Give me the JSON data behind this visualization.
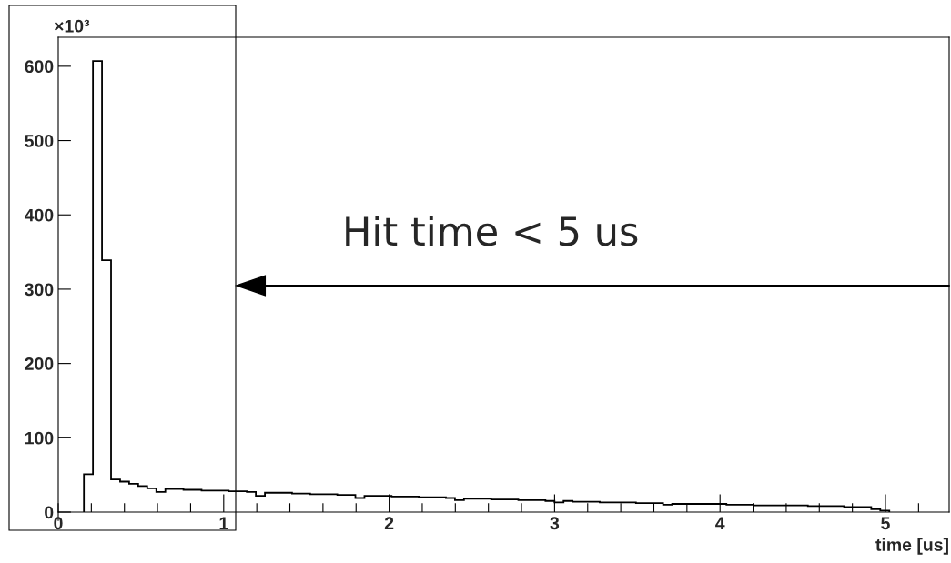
{
  "chart_data": {
    "type": "histogram",
    "xlabel": "time [us]",
    "ylabel": "×10³",
    "annotations": [
      "Hit time < 5 us"
    ],
    "color": "#000000",
    "bins": [
      0.155,
      0.2097,
      0.2644,
      0.3191,
      0.3738,
      0.4285,
      0.4832,
      0.5379,
      0.5926,
      0.6473,
      0.702,
      0.7567,
      0.8114,
      0.8661,
      0.9208,
      0.9755,
      1.0302,
      1.0849,
      1.1396,
      1.1943,
      1.249,
      1.3037,
      1.3584,
      1.4131,
      1.4678,
      1.5225,
      1.5772,
      1.6319,
      1.6866,
      1.7413,
      1.796,
      1.8507,
      1.9054,
      1.9601,
      2.0148,
      2.0695,
      2.1242,
      2.1789,
      2.2336,
      2.2883,
      2.343,
      2.3977,
      2.4524,
      2.5071,
      2.5618,
      2.6165,
      2.6712,
      2.7259,
      2.7806,
      2.8353,
      2.89,
      2.9447,
      2.9994,
      3.0541,
      3.1088,
      3.1635,
      3.2182,
      3.2729,
      3.3276,
      3.3823,
      3.437,
      3.4917,
      3.5464,
      3.6011,
      3.6558,
      3.7105,
      3.7652,
      3.8199,
      3.8746,
      3.9293,
      3.984,
      4.0387,
      4.0934,
      4.1481,
      4.2028,
      4.2575,
      4.3122,
      4.3669,
      4.4216,
      4.4763,
      4.531,
      4.5857,
      4.6404,
      4.6951,
      4.7498,
      4.8045,
      4.8592,
      4.9139,
      4.9686,
      5.0233
    ],
    "values": [
      51,
      607,
      339,
      44,
      41,
      38,
      35,
      32,
      27,
      31,
      31,
      30,
      30,
      29,
      29,
      29,
      28,
      28,
      27,
      22,
      26,
      26,
      26,
      25,
      25,
      24,
      24,
      24,
      23,
      23,
      19,
      22,
      22,
      22,
      21,
      21,
      21,
      20,
      20,
      20,
      19,
      16,
      18,
      18,
      18,
      17,
      17,
      17,
      16,
      16,
      16,
      15,
      13,
      15,
      14,
      14,
      14,
      13,
      13,
      13,
      13,
      12,
      12,
      12,
      10,
      11,
      11,
      11,
      11,
      11,
      11,
      10,
      10,
      10,
      9,
      9,
      9,
      9,
      9,
      9,
      8,
      8,
      8,
      8,
      7,
      7,
      7,
      4,
      2
    ],
    "xlim": [
      0,
      5.385
    ],
    "ylim": [
      0,
      639
    ],
    "xticks": [
      0,
      {
        "value": 0.2,
        "label": null
      },
      {
        "value": 0.4,
        "label": null
      },
      {
        "value": 0.6,
        "label": null
      },
      {
        "value": 0.8,
        "label": null
      },
      1,
      {
        "value": 1.2,
        "label": null
      },
      {
        "value": 1.4,
        "label": null
      },
      {
        "value": 1.6,
        "label": null
      },
      {
        "value": 1.8,
        "label": null
      },
      2,
      {
        "value": 2.2,
        "label": null
      },
      {
        "value": 2.4,
        "label": null
      },
      {
        "value": 2.6,
        "label": null
      },
      {
        "value": 2.8,
        "label": null
      },
      3,
      {
        "value": 3.2,
        "label": null
      },
      {
        "value": 3.4,
        "label": null
      },
      {
        "value": 3.6,
        "label": null
      },
      {
        "value": 3.8,
        "label": null
      },
      4,
      {
        "value": 4.2,
        "label": null
      },
      {
        "value": 4.4,
        "label": null
      },
      {
        "value": 4.6,
        "label": null
      },
      {
        "value": 4.8,
        "label": null
      },
      5,
      {
        "value": 5.2,
        "label": null
      }
    ],
    "yticks": [
      0,
      100,
      200,
      300,
      400,
      500,
      600
    ]
  }
}
